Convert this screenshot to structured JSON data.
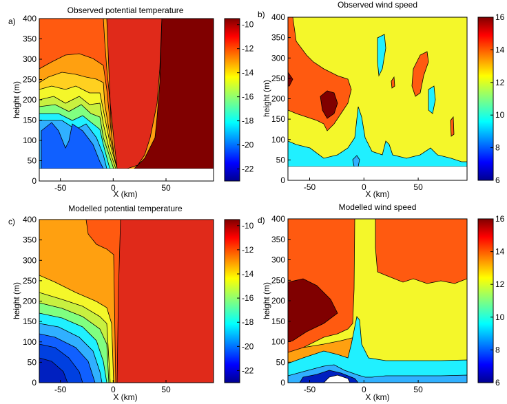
{
  "chart_data": [
    {
      "type": "contour",
      "panel_label": "a)",
      "title": "Observed potential temperature",
      "xlabel": "X (km)",
      "ylabel": "height (m)",
      "xlim": [
        -70,
        95
      ],
      "ylim": [
        0,
        400
      ],
      "x_ticks": [
        -50,
        0,
        50
      ],
      "y_ticks": [
        0,
        50,
        100,
        150,
        200,
        250,
        300,
        350,
        400
      ],
      "data_bottom_height": 30,
      "colorbar": {
        "range": [
          -23,
          -9.5
        ],
        "ticks": [
          -10,
          -12,
          -14,
          -16,
          -18,
          -20,
          -22
        ],
        "colormap": "jet"
      }
    },
    {
      "type": "contour",
      "panel_label": "b)",
      "title": "Observed wind speed",
      "xlabel": "X (km)",
      "ylabel": "height (m)",
      "xlim": [
        -70,
        95
      ],
      "ylim": [
        0,
        400
      ],
      "x_ticks": [
        -50,
        0,
        50
      ],
      "y_ticks": [
        0,
        50,
        100,
        150,
        200,
        250,
        300,
        350,
        400
      ],
      "data_bottom_height": 30,
      "colorbar": {
        "range": [
          6,
          16
        ],
        "ticks": [
          16,
          14,
          12,
          10,
          8,
          6
        ],
        "colormap": "jet"
      }
    },
    {
      "type": "contour",
      "panel_label": "c)",
      "title": "Modelled potential temperature",
      "xlabel": "X (km)",
      "ylabel": "height (m)",
      "xlim": [
        -70,
        95
      ],
      "ylim": [
        0,
        400
      ],
      "x_ticks": [
        -50,
        0,
        50
      ],
      "y_ticks": [
        0,
        50,
        100,
        150,
        200,
        250,
        300,
        350,
        400
      ],
      "colorbar": {
        "range": [
          -23,
          -9.5
        ],
        "ticks": [
          -10,
          -12,
          -14,
          -16,
          -18,
          -20,
          -22
        ],
        "colormap": "jet"
      }
    },
    {
      "type": "contour",
      "panel_label": "d)",
      "title": "Modelled wind speed",
      "xlabel": "X (km)",
      "ylabel": "height (m)",
      "xlim": [
        -70,
        95
      ],
      "ylim": [
        0,
        400
      ],
      "x_ticks": [
        -50,
        0,
        50
      ],
      "y_ticks": [
        0,
        50,
        100,
        150,
        200,
        250,
        300,
        350,
        400
      ],
      "colorbar": {
        "range": [
          6,
          16
        ],
        "ticks": [
          16,
          14,
          12,
          10,
          8,
          6
        ],
        "colormap": "jet"
      }
    }
  ],
  "colors": {
    "darkred": "#800000",
    "red": "#e02a1a",
    "orangered": "#ff5a10",
    "orange": "#ffa010",
    "yellow": "#f4f72a",
    "yellowgreen": "#c8f040",
    "green": "#80ff80",
    "cyan": "#20f0ff",
    "skyblue": "#30b0ff",
    "blue": "#1060ff",
    "navy": "#0020c0"
  }
}
